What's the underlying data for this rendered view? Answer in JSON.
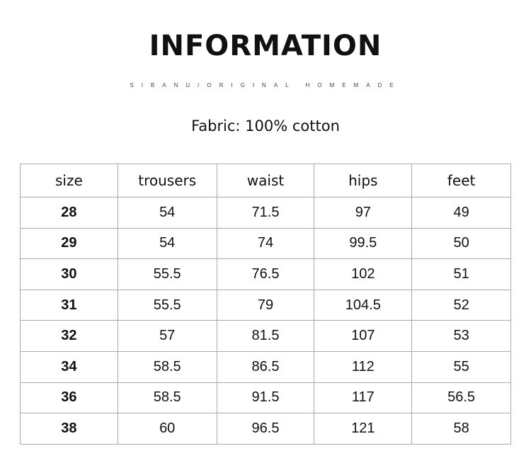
{
  "title": "INFORMATION",
  "subtitle": "SIBANU/ORIGINAL HOMEMADE",
  "fabric": "Fabric: 100% cotton",
  "table": {
    "headers": [
      "size",
      "trousers",
      "waist",
      "hips",
      "feet"
    ],
    "rows": [
      [
        "28",
        "54",
        "71.5",
        "97",
        "49"
      ],
      [
        "29",
        "54",
        "74",
        "99.5",
        "50"
      ],
      [
        "30",
        "55.5",
        "76.5",
        "102",
        "51"
      ],
      [
        "31",
        "55.5",
        "79",
        "104.5",
        "52"
      ],
      [
        "32",
        "57",
        "81.5",
        "107",
        "53"
      ],
      [
        "34",
        "58.5",
        "86.5",
        "112",
        "55"
      ],
      [
        "36",
        "58.5",
        "91.5",
        "117",
        "56.5"
      ],
      [
        "38",
        "60",
        "96.5",
        "121",
        "58"
      ]
    ]
  }
}
